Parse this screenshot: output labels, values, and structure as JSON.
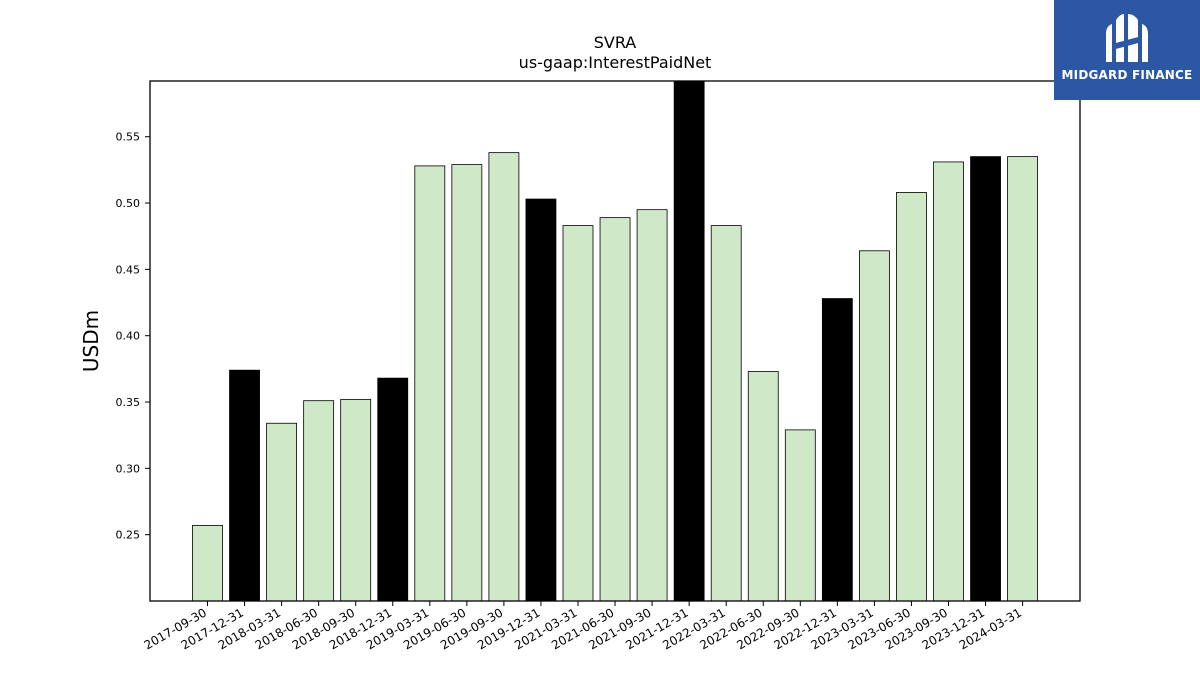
{
  "chart_data": {
    "type": "bar",
    "title": "SVRA",
    "subtitle": "us-gaap:InterestPaidNet",
    "xlabel": "",
    "ylabel": "USDm",
    "ylim": [
      0.2,
      0.592
    ],
    "yticks": [
      "0.25",
      "0.30",
      "0.35",
      "0.40",
      "0.45",
      "0.50",
      "0.55"
    ],
    "grid": false,
    "categories": [
      "2017-09-30",
      "2017-12-31",
      "2018-03-31",
      "2018-06-30",
      "2018-09-30",
      "2018-12-31",
      "2019-03-31",
      "2019-06-30",
      "2019-09-30",
      "2019-12-31",
      "2021-03-31",
      "2021-06-30",
      "2021-09-30",
      "2021-12-31",
      "2022-03-31",
      "2022-06-30",
      "2022-09-30",
      "2022-12-31",
      "2023-03-31",
      "2023-06-30",
      "2023-09-30",
      "2023-12-31",
      "2024-03-31"
    ],
    "values": [
      0.257,
      0.374,
      0.334,
      0.351,
      0.352,
      0.368,
      0.528,
      0.529,
      0.538,
      0.503,
      0.483,
      0.489,
      0.495,
      0.592,
      0.483,
      0.373,
      0.329,
      0.428,
      0.464,
      0.508,
      0.531,
      0.535,
      0.535
    ],
    "highlight": [
      false,
      true,
      false,
      false,
      false,
      true,
      false,
      false,
      false,
      true,
      false,
      false,
      false,
      true,
      false,
      false,
      false,
      true,
      false,
      false,
      false,
      true,
      false
    ],
    "colors": {
      "normal": "#cfe8c8",
      "highlight": "#000000",
      "edge": "#000000"
    }
  },
  "logo": {
    "text": "MIDGARD FINANCE",
    "background": "#2b57a5"
  }
}
